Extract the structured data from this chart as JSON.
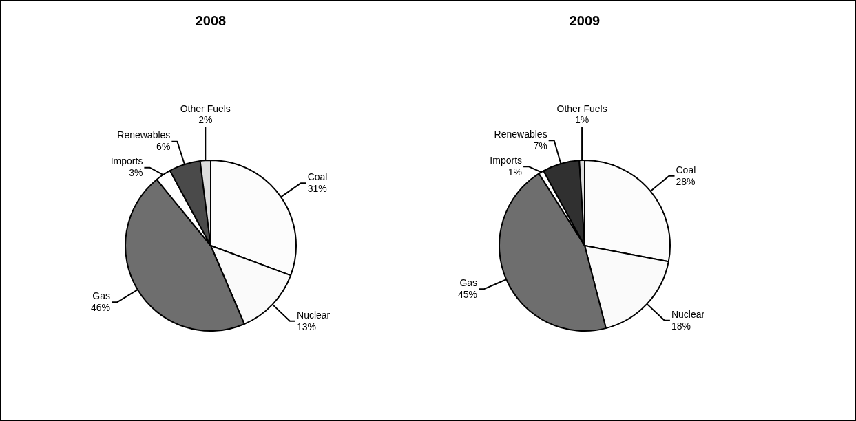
{
  "chart_data": [
    {
      "type": "pie",
      "title": "2008",
      "categories": [
        "Coal",
        "Nuclear",
        "Gas",
        "Imports",
        "Renewables",
        "Other Fuels"
      ],
      "values": [
        31,
        13,
        46,
        3,
        6,
        2
      ],
      "value_labels": [
        "31%",
        "13%",
        "46%",
        "3%",
        "6%",
        "2%"
      ],
      "colors": [
        "#fcfcfc",
        "#fafafa",
        "#6e6e6e",
        "#ffffff",
        "#4a4a4a",
        "#dcdcdc"
      ],
      "legend": false
    },
    {
      "type": "pie",
      "title": "2009",
      "categories": [
        "Coal",
        "Nuclear",
        "Gas",
        "Imports",
        "Renewables",
        "Other Fuels"
      ],
      "values": [
        28,
        18,
        45,
        1,
        7,
        1
      ],
      "value_labels": [
        "28%",
        "18%",
        "45%",
        "1%",
        "7%",
        "1%"
      ],
      "colors": [
        "#fcfcfc",
        "#fafafa",
        "#6e6e6e",
        "#ffffff",
        "#303030",
        "#dcdcdc"
      ],
      "legend": false
    }
  ]
}
